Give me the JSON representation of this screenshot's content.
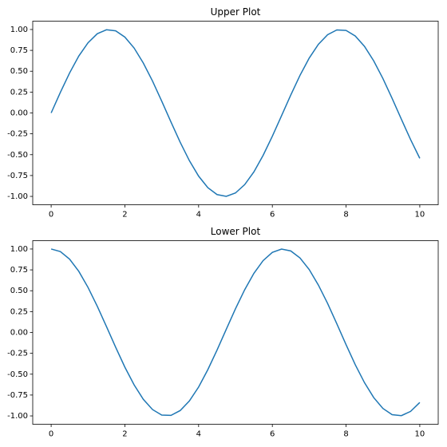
{
  "chart_data": [
    {
      "type": "line",
      "title": "Upper Plot",
      "x": [
        0,
        0.25,
        0.5,
        0.75,
        1,
        1.25,
        1.5,
        1.75,
        2,
        2.25,
        2.5,
        2.75,
        3,
        3.25,
        3.5,
        3.75,
        4,
        4.25,
        4.5,
        4.75,
        5,
        5.25,
        5.5,
        5.75,
        6,
        6.25,
        6.5,
        6.75,
        7,
        7.25,
        7.5,
        7.75,
        8,
        8.25,
        8.5,
        8.75,
        9,
        9.25,
        9.5,
        9.75,
        10
      ],
      "series": [
        {
          "color": "#1f77b4",
          "values": [
            0,
            0.247,
            0.479,
            0.682,
            0.841,
            0.949,
            0.997,
            0.984,
            0.909,
            0.778,
            0.598,
            0.382,
            0.141,
            -0.108,
            -0.351,
            -0.572,
            -0.757,
            -0.895,
            -0.978,
            -0.999,
            -0.959,
            -0.859,
            -0.706,
            -0.508,
            -0.279,
            -0.033,
            0.215,
            0.45,
            0.657,
            0.823,
            0.938,
            0.995,
            0.989,
            0.922,
            0.798,
            0.624,
            0.412,
            0.174,
            -0.075,
            -0.319,
            -0.544
          ]
        }
      ],
      "xlim": [
        -0.5,
        10.5
      ],
      "xticks": [
        0,
        2,
        4,
        6,
        8,
        10
      ],
      "ylim": [
        -1.1,
        1.1
      ],
      "yticks": [
        {
          "value": -1,
          "label": "-1.00"
        },
        {
          "value": -0.75,
          "label": "-0.75"
        },
        {
          "value": -0.5,
          "label": "-0.50"
        },
        {
          "value": -0.25,
          "label": "-0.25"
        },
        {
          "value": 0,
          "label": "0.00"
        },
        {
          "value": 0.25,
          "label": "0.25"
        },
        {
          "value": 0.5,
          "label": "0.50"
        },
        {
          "value": 0.75,
          "label": "0.75"
        },
        {
          "value": 1,
          "label": "1.00"
        }
      ]
    },
    {
      "type": "line",
      "title": "Lower Plot",
      "x": [
        0,
        0.25,
        0.5,
        0.75,
        1,
        1.25,
        1.5,
        1.75,
        2,
        2.25,
        2.5,
        2.75,
        3,
        3.25,
        3.5,
        3.75,
        4,
        4.25,
        4.5,
        4.75,
        5,
        5.25,
        5.5,
        5.75,
        6,
        6.25,
        6.5,
        6.75,
        7,
        7.25,
        7.5,
        7.75,
        8,
        8.25,
        8.5,
        8.75,
        9,
        9.25,
        9.5,
        9.75,
        10
      ],
      "series": [
        {
          "color": "#1f77b4",
          "values": [
            1,
            0.969,
            0.878,
            0.732,
            0.54,
            0.315,
            0.071,
            -0.178,
            -0.416,
            -0.628,
            -0.801,
            -0.924,
            -0.99,
            -0.994,
            -0.936,
            -0.821,
            -0.654,
            -0.446,
            -0.211,
            0.038,
            0.284,
            0.512,
            0.709,
            0.861,
            0.96,
            0.999,
            0.977,
            0.893,
            0.754,
            0.567,
            0.347,
            0.104,
            -0.146,
            -0.387,
            -0.602,
            -0.78,
            -0.911,
            -0.985,
            -0.997,
            -0.946,
            -0.839
          ]
        }
      ],
      "xlim": [
        -0.5,
        10.5
      ],
      "xticks": [
        0,
        2,
        4,
        6,
        8,
        10
      ],
      "ylim": [
        -1.1,
        1.1
      ],
      "yticks": [
        {
          "value": -1,
          "label": "-1.00"
        },
        {
          "value": -0.75,
          "label": "-0.75"
        },
        {
          "value": -0.5,
          "label": "-0.50"
        },
        {
          "value": -0.25,
          "label": "-0.25"
        },
        {
          "value": 0,
          "label": "0.00"
        },
        {
          "value": 0.25,
          "label": "0.25"
        },
        {
          "value": 0.5,
          "label": "0.50"
        },
        {
          "value": 0.75,
          "label": "0.75"
        },
        {
          "value": 1,
          "label": "1.00"
        }
      ]
    }
  ]
}
